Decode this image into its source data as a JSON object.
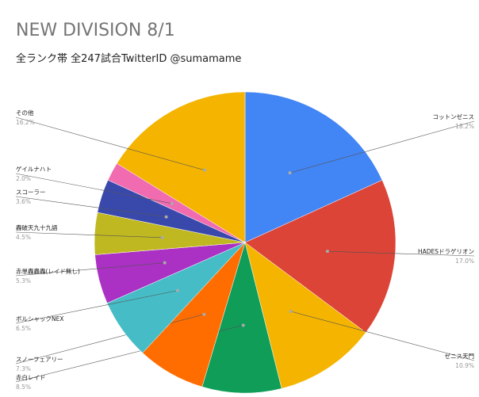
{
  "chart_data": {
    "type": "pie",
    "title": "NEW DIVISION 8/1",
    "subtitle": "全ランク帯 全247試合TwitterID @sumamame",
    "slices": [
      {
        "label": "コットンゼニス",
        "percent": 18.2,
        "value_text": "18.2%",
        "color": "#4285f4"
      },
      {
        "label": "HADESドラゲリオン",
        "percent": 17.0,
        "value_text": "17.0%",
        "color": "#db4437"
      },
      {
        "label": "ゼニス天門",
        "percent": 10.9,
        "value_text": "10.9%",
        "color": "#f4b400"
      },
      {
        "label": "赤白レイド",
        "percent": 8.5,
        "value_text": "8.5%",
        "color": "#0f9d58"
      },
      {
        "label": "スノーフェアリー",
        "percent": 7.3,
        "value_text": "7.3%",
        "color": "#ff6d00"
      },
      {
        "label": "ボルシャックNEX",
        "percent": 6.5,
        "value_text": "6.5%",
        "color": "#46bdc6"
      },
      {
        "label": "赤単轟轟轟(レイド無し)",
        "percent": 5.3,
        "value_text": "5.3%",
        "color": "#ab30c4"
      },
      {
        "label": "轟破天九十九語",
        "percent": 4.5,
        "value_text": "4.5%",
        "color": "#c0b820"
      },
      {
        "label": "スコーラー",
        "percent": 3.6,
        "value_text": "3.6%",
        "color": "#3949ab"
      },
      {
        "label": "ゲイルナハト",
        "percent": 2.0,
        "value_text": "2.0%",
        "color": "#f06bb0"
      },
      {
        "label": "その他",
        "percent": 16.2,
        "value_text": "16.2%",
        "color": "#f4b400"
      }
    ]
  }
}
